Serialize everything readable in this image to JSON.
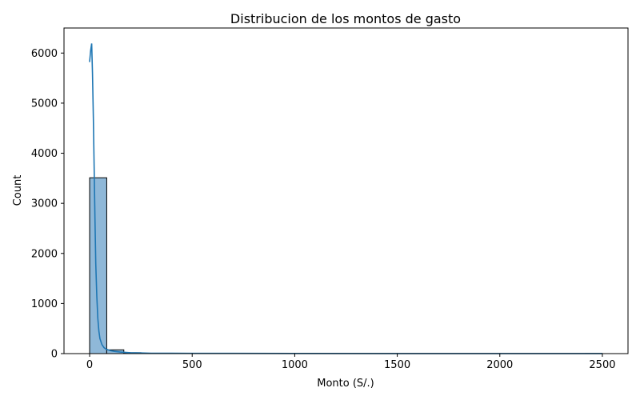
{
  "chart_data": {
    "type": "bar",
    "title": "Distribucion de los montos de gasto",
    "xlabel": "Monto (S/.)",
    "ylabel": "Count",
    "xlim": [
      -125,
      2625
    ],
    "ylim": [
      0,
      6500
    ],
    "x_ticks": [
      0,
      500,
      1000,
      1500,
      2000,
      2500
    ],
    "y_ticks": [
      0,
      1000,
      2000,
      3000,
      4000,
      5000,
      6000
    ],
    "grid": false,
    "bin_width": 83.33,
    "bins": [
      {
        "x0": 0,
        "x1": 83.33,
        "count": 3510
      },
      {
        "x0": 83.33,
        "x1": 166.67,
        "count": 75
      },
      {
        "x0": 166.67,
        "x1": 250,
        "count": 18
      },
      {
        "x0": 250,
        "x1": 333.33,
        "count": 6
      },
      {
        "x0": 333.33,
        "x1": 416.67,
        "count": 3
      },
      {
        "x0": 416.67,
        "x1": 500,
        "count": 2
      },
      {
        "x0": 500,
        "x1": 583.33,
        "count": 1
      },
      {
        "x0": 583.33,
        "x1": 666.67,
        "count": 1
      },
      {
        "x0": 666.67,
        "x1": 750,
        "count": 2
      },
      {
        "x0": 750,
        "x1": 833.33,
        "count": 1
      },
      {
        "x0": 833.33,
        "x1": 916.67,
        "count": 0
      },
      {
        "x0": 916.67,
        "x1": 1000,
        "count": 1
      },
      {
        "x0": 1000,
        "x1": 1083.33,
        "count": 0
      },
      {
        "x0": 1083.33,
        "x1": 1166.67,
        "count": 1
      },
      {
        "x0": 1166.67,
        "x1": 1250,
        "count": 0
      },
      {
        "x0": 1250,
        "x1": 1333.33,
        "count": 0
      },
      {
        "x0": 1333.33,
        "x1": 1416.67,
        "count": 0
      },
      {
        "x0": 1416.67,
        "x1": 1500,
        "count": 1
      },
      {
        "x0": 1500,
        "x1": 1583.33,
        "count": 0
      },
      {
        "x0": 1583.33,
        "x1": 1666.67,
        "count": 0
      },
      {
        "x0": 1666.67,
        "x1": 1750,
        "count": 0
      },
      {
        "x0": 1750,
        "x1": 1833.33,
        "count": 0
      },
      {
        "x0": 1833.33,
        "x1": 1916.67,
        "count": 0
      },
      {
        "x0": 1916.67,
        "x1": 2000,
        "count": 0
      },
      {
        "x0": 2000,
        "x1": 2083.33,
        "count": 0
      },
      {
        "x0": 2083.33,
        "x1": 2166.67,
        "count": 0
      },
      {
        "x0": 2166.67,
        "x1": 2250,
        "count": 0
      },
      {
        "x0": 2250,
        "x1": 2333.33,
        "count": 0
      },
      {
        "x0": 2333.33,
        "x1": 2416.67,
        "count": 0
      },
      {
        "x0": 2416.67,
        "x1": 2500,
        "count": 1
      }
    ],
    "kde": {
      "x": [
        0,
        5,
        10,
        14,
        18,
        22,
        26,
        30,
        35,
        40,
        45,
        50,
        60,
        70,
        80,
        100,
        120,
        150,
        200,
        250,
        300,
        400,
        500,
        700,
        1000,
        1500,
        2000,
        2500
      ],
      "y": [
        5820,
        6050,
        6190,
        5600,
        4700,
        3700,
        2700,
        1800,
        1150,
        700,
        450,
        300,
        180,
        120,
        90,
        60,
        45,
        30,
        18,
        12,
        8,
        6,
        4,
        4,
        3,
        2,
        2,
        1
      ]
    },
    "colors": {
      "bar_fill": "#8fb8d8",
      "bar_edge": "#000000",
      "kde_line": "#1f77b4",
      "axes": "#000000",
      "background": "#ffffff"
    }
  }
}
